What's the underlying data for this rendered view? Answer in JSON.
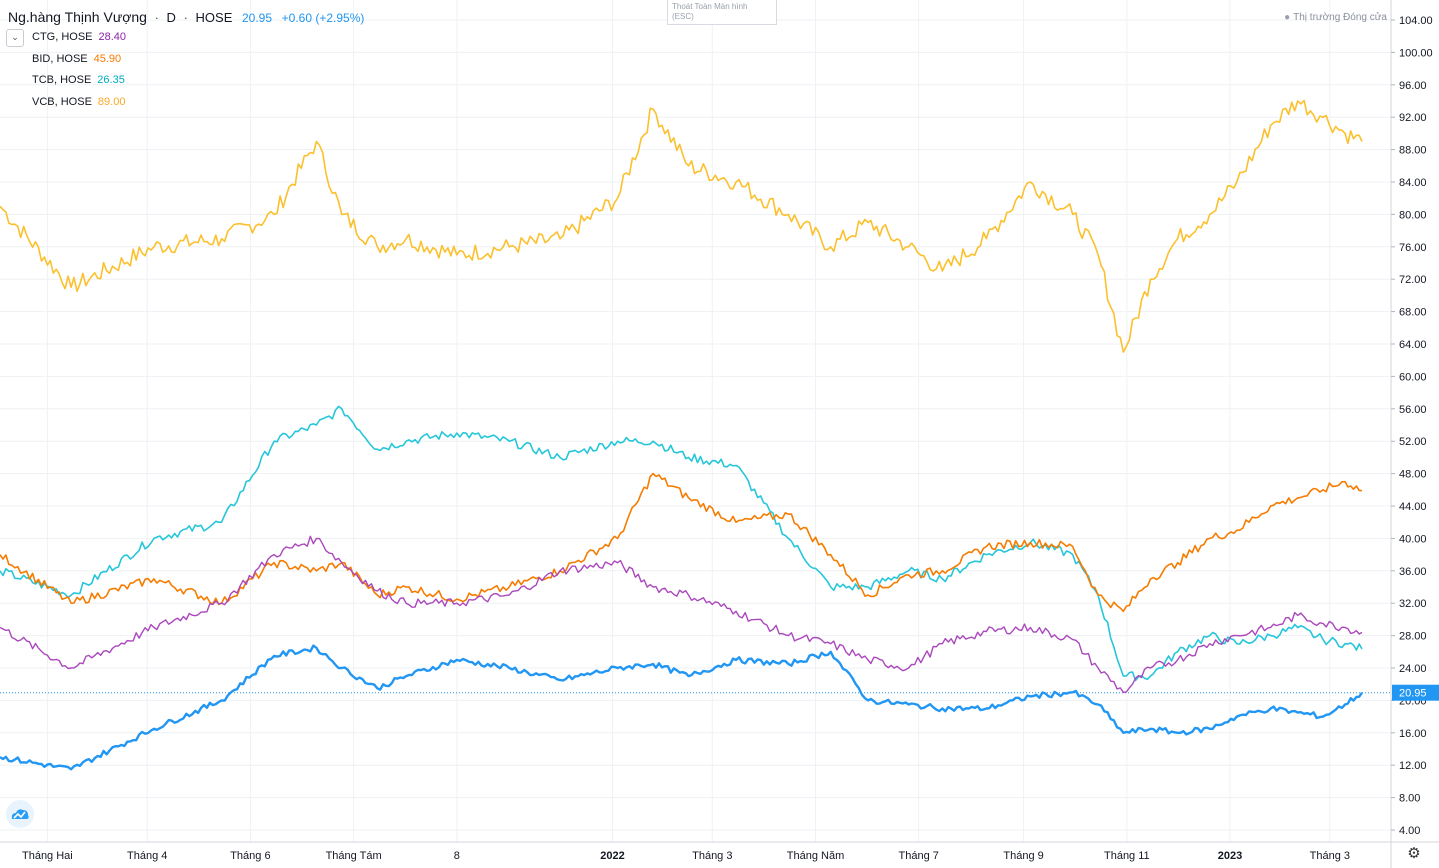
{
  "header": {
    "symbol": "Ng.hàng Thịnh Vượng",
    "interval": "D",
    "exchange": "HOSE",
    "last": "20.95",
    "change": "+0.60 (+2.95%)"
  },
  "compare_legend": [
    {
      "label": "CTG, HOSE",
      "value": "28.40",
      "color": "#ab47bc"
    },
    {
      "label": "BID, HOSE",
      "value": "45.90",
      "color": "#f57c00"
    },
    {
      "label": "TCB, HOSE",
      "value": "26.35",
      "color": "#26c6da"
    },
    {
      "label": "VCB, HOSE",
      "value": "89.00",
      "color": "#fbc02d"
    }
  ],
  "fullscreen_tip": {
    "line1": "Thoát Toàn Màn hình",
    "line2": "(ESC)"
  },
  "market_status": "Thị trường Đóng cửa",
  "icons": {
    "collapse": "chevron-down-icon",
    "logo": "tradingview-logo-icon",
    "settings": "gear-icon"
  },
  "chart_data": {
    "type": "line",
    "x_ticks": [
      "Tháng Hai",
      "Tháng 4",
      "Tháng 6",
      "Tháng Tám",
      "8",
      "2022",
      "Tháng 3",
      "Tháng Năm",
      "Tháng 7",
      "Tháng 9",
      "Tháng 11",
      "2023",
      "Tháng 3"
    ],
    "y_ticks": [
      "104.00",
      "100.00",
      "96.00",
      "92.00",
      "88.00",
      "84.00",
      "80.00",
      "76.00",
      "72.00",
      "68.00",
      "64.00",
      "60.00",
      "56.00",
      "52.00",
      "48.00",
      "44.00",
      "40.00",
      "36.00",
      "32.00",
      "28.00",
      "24.00",
      "20.00",
      "16.00",
      "12.00",
      "8.00",
      "4.00"
    ],
    "ylim": [
      4,
      104
    ],
    "x": [
      "2021-01-04",
      "2021-02-15",
      "2021-04-05",
      "2021-05-15",
      "2021-06-15",
      "2021-07-10",
      "2021-07-25",
      "2021-08-15",
      "2021-09-01",
      "2021-10-01",
      "2021-11-01",
      "2021-12-01",
      "2022-01-04",
      "2022-01-25",
      "2022-02-15",
      "2022-03-15",
      "2022-04-15",
      "2022-05-10",
      "2022-06-01",
      "2022-06-25",
      "2022-07-15",
      "2022-08-10",
      "2022-09-05",
      "2022-09-30",
      "2022-10-15",
      "2022-10-30",
      "2022-11-15",
      "2022-12-01",
      "2022-12-20",
      "2023-01-05",
      "2023-01-25",
      "2023-02-10",
      "2023-02-25",
      "2023-03-10",
      "2023-03-20"
    ],
    "series": [
      {
        "name": "Ng.hàng Thịnh Vượng",
        "color": "#2196f3",
        "width": 2.4,
        "values": [
          13.0,
          11.5,
          16.5,
          20.0,
          25.5,
          26.5,
          24.0,
          21.5,
          23.0,
          25.0,
          24.0,
          22.5,
          24.0,
          24.5,
          23.0,
          25.0,
          24.5,
          26.0,
          20.0,
          19.5,
          19.0,
          19.0,
          20.5,
          21.0,
          19.5,
          16.0,
          16.5,
          16.0,
          16.5,
          18.0,
          19.0,
          18.5,
          18.0,
          19.5,
          20.95
        ]
      },
      {
        "name": "CTG, HOSE",
        "color": "#ab47bc",
        "width": 1.4,
        "values": [
          29.0,
          24.0,
          29.0,
          32.0,
          38.0,
          40.0,
          37.0,
          33.5,
          32.0,
          32.0,
          33.0,
          36.0,
          37.0,
          34.0,
          33.0,
          31.0,
          28.0,
          27.0,
          25.0,
          24.0,
          27.0,
          28.5,
          29.0,
          27.5,
          24.0,
          21.0,
          24.0,
          25.0,
          27.0,
          28.0,
          29.0,
          30.5,
          29.5,
          29.0,
          28.4
        ]
      },
      {
        "name": "BID, HOSE",
        "color": "#f57c00",
        "width": 1.6,
        "values": [
          38.0,
          32.0,
          35.0,
          32.0,
          37.0,
          36.0,
          37.0,
          33.0,
          34.0,
          32.5,
          34.0,
          36.0,
          40.0,
          48.0,
          45.0,
          42.0,
          43.0,
          38.0,
          33.0,
          35.5,
          36.0,
          39.0,
          39.5,
          39.0,
          33.0,
          31.0,
          35.0,
          37.0,
          40.0,
          41.0,
          44.0,
          45.0,
          46.0,
          47.0,
          45.9
        ]
      },
      {
        "name": "TCB, HOSE",
        "color": "#26c6da",
        "width": 1.6,
        "values": [
          36.0,
          33.0,
          40.0,
          42.0,
          52.0,
          54.0,
          56.0,
          51.0,
          52.0,
          53.0,
          52.0,
          50.0,
          52.0,
          52.0,
          50.0,
          49.0,
          40.0,
          34.0,
          34.0,
          36.0,
          35.0,
          38.0,
          39.5,
          38.0,
          33.0,
          23.0,
          23.0,
          26.0,
          28.0,
          27.0,
          28.0,
          29.0,
          27.5,
          27.0,
          26.35
        ]
      },
      {
        "name": "VCB, HOSE",
        "color": "#fbc02d",
        "width": 1.6,
        "values": [
          81.0,
          71.0,
          76.0,
          77.0,
          80.0,
          89.0,
          80.0,
          76.0,
          77.0,
          75.0,
          76.0,
          77.0,
          82.0,
          93.0,
          86.0,
          84.0,
          80.0,
          76.0,
          79.0,
          76.0,
          73.0,
          77.0,
          84.0,
          80.0,
          75.0,
          63.0,
          72.0,
          77.0,
          80.0,
          84.0,
          91.0,
          94.0,
          92.0,
          90.0,
          89.0
        ]
      }
    ],
    "last_price_line": 20.95,
    "grid": true,
    "legend_position": "top-left"
  }
}
